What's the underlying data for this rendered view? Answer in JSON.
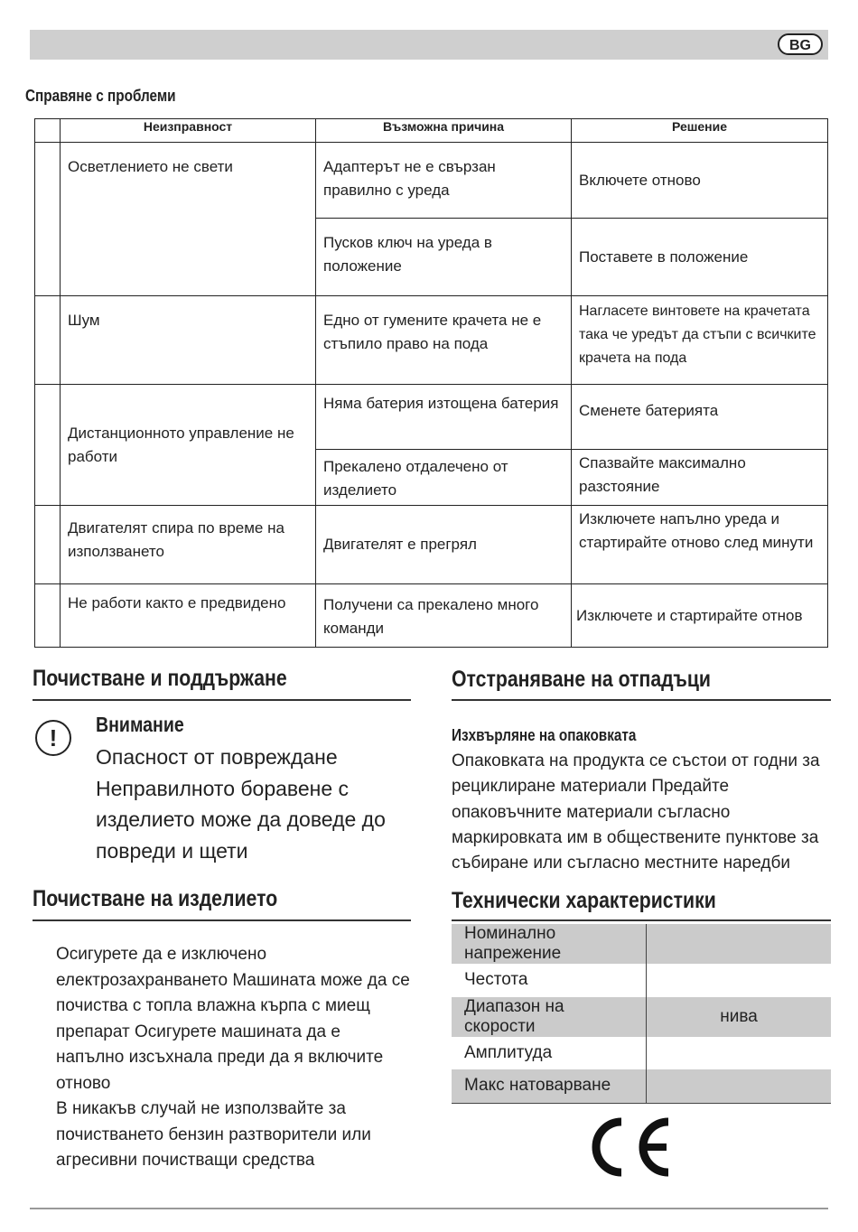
{
  "header": {
    "lang_badge": "BG"
  },
  "troubleshooting": {
    "title": "Справяне с проблеми",
    "columns": [
      "Неизправност",
      "Възможна причина",
      "Решение"
    ],
    "groups": [
      {
        "problem": "Осветлението не свети",
        "rows": [
          {
            "cause": "Адаптерът не е свързан правилно с уреда",
            "solution": "Включете отново"
          },
          {
            "cause": "Пусков ключ на уреда в положение",
            "solution": "Поставете в положение"
          }
        ]
      },
      {
        "problem": "Шум",
        "rows": [
          {
            "cause": "Едно от гумените крачета не е стъпило право на пода",
            "solution": "Нагласете винтовете на крачетата така  че уредът да стъпи с всичките крачета на пода"
          }
        ]
      },
      {
        "problem": "Дистанционното управление не работи",
        "rows": [
          {
            "cause": "Няма батерия    изтощена батерия",
            "solution": "Сменете батерията"
          },
          {
            "cause": "Прекалено отдалечено от изделието",
            "solution": "Спазвайте максимално разстояние"
          }
        ]
      },
      {
        "problem": "Двигателят спира по време на използването",
        "rows": [
          {
            "cause": "Двигателят е прегрял",
            "solution": "Изключете напълно уреда и стартирайте отново след минути"
          }
        ]
      },
      {
        "problem": "Не работи както е предвидено",
        "rows": [
          {
            "cause": "Получени са прекалено много команди",
            "solution": "Изключете и стартирайте отнов"
          }
        ]
      }
    ]
  },
  "maintenance": {
    "title": "Почистване и поддържане",
    "warning_title": "Внимание",
    "warning_lines": [
      "Опасност от повреждане",
      "Неправилното боравене с",
      "изделието може да доведе до",
      "повреди и щети"
    ]
  },
  "cleaning": {
    "title": "Почистване на изделието",
    "lines": [
      "Осигурете да е изключено",
      "електрозахранването  Машината може да се",
      "почиства с топла  влажна кърпа с миещ",
      "препарат  Осигурете машината да е",
      "напълно изсъхнала  преди да я включите",
      "отново",
      "В никакъв случай не използвайте за",
      "почистването бензин  разтворители или",
      "агресивни почистващи средства"
    ]
  },
  "disposal": {
    "title": "Отстраняване на отпадъци",
    "subtitle": "Изхвърляне на опаковката",
    "lines": [
      "Опаковката на продукта се състои от годни за",
      "рециклиране материали  Предайте",
      "опаковъчните материали съгласно",
      "маркировката им в обществените пунктове за",
      "събиране или съгласно местните наредби"
    ]
  },
  "specs": {
    "title": "Технически характеристики",
    "rows": [
      {
        "label": "Номинално напрежение",
        "value": ""
      },
      {
        "label": "Честота",
        "value": ""
      },
      {
        "label": "Диапазон на скорости",
        "value": "нива"
      },
      {
        "label": "Амплитуда",
        "value": ""
      },
      {
        "label": "Макс  натоварване",
        "value": ""
      }
    ]
  },
  "ce_mark": "CE"
}
